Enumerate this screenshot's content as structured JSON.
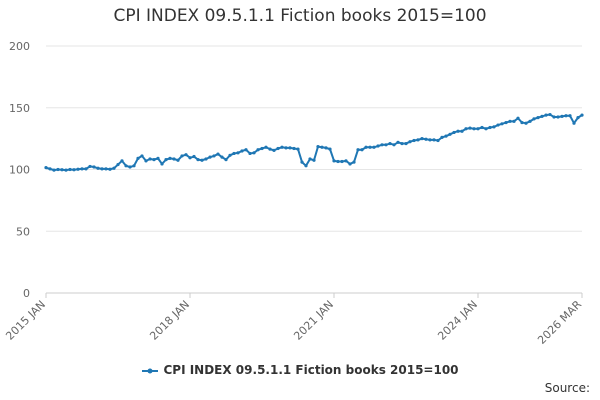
{
  "chart_data": {
    "type": "line",
    "title": "CPI INDEX 09.5.1.1 Fiction books 2015=100",
    "xlabel": "",
    "ylabel": "",
    "ylim": [
      0,
      200
    ],
    "yticks": [
      0,
      50,
      100,
      150,
      200
    ],
    "x_tick_labels": [
      "2015 JAN",
      "2018 JAN",
      "2021 JAN",
      "2024 JAN",
      "2026 MAR"
    ],
    "grid": true,
    "legend_position": "bottom",
    "series": [
      {
        "name": "CPI INDEX 09.5.1.1 Fiction books 2015=100",
        "color": "#1f77b4",
        "x": [
          "2015-01",
          "2015-02",
          "2015-03",
          "2015-04",
          "2015-05",
          "2015-06",
          "2015-07",
          "2015-08",
          "2015-09",
          "2015-10",
          "2015-11",
          "2015-12",
          "2016-01",
          "2016-02",
          "2016-03",
          "2016-04",
          "2016-05",
          "2016-06",
          "2016-07",
          "2016-08",
          "2016-09",
          "2016-10",
          "2016-11",
          "2016-12",
          "2017-01",
          "2017-02",
          "2017-03",
          "2017-04",
          "2017-05",
          "2017-06",
          "2017-07",
          "2017-08",
          "2017-09",
          "2017-10",
          "2017-11",
          "2017-12",
          "2018-01",
          "2018-02",
          "2018-03",
          "2018-04",
          "2018-05",
          "2018-06",
          "2018-07",
          "2018-08",
          "2018-09",
          "2018-10",
          "2018-11",
          "2018-12",
          "2019-01",
          "2019-02",
          "2019-03",
          "2019-04",
          "2019-05",
          "2019-06",
          "2019-07",
          "2019-08",
          "2019-09",
          "2019-10",
          "2019-11",
          "2019-12",
          "2020-01",
          "2020-02",
          "2020-03",
          "2020-04",
          "2020-05",
          "2020-06",
          "2020-07",
          "2020-08",
          "2020-09",
          "2020-10",
          "2020-11",
          "2020-12",
          "2021-01",
          "2021-02",
          "2021-03",
          "2021-04",
          "2021-05",
          "2021-06",
          "2021-07",
          "2021-08",
          "2021-09",
          "2021-10",
          "2021-11",
          "2021-12",
          "2022-01",
          "2022-02",
          "2022-03",
          "2022-04",
          "2022-05",
          "2022-06",
          "2022-07",
          "2022-08",
          "2022-09",
          "2022-10",
          "2022-11",
          "2022-12",
          "2023-01",
          "2023-02",
          "2023-03",
          "2023-04",
          "2023-05",
          "2023-06",
          "2023-07",
          "2023-08",
          "2023-09",
          "2023-10",
          "2023-11",
          "2023-12",
          "2024-01",
          "2024-02",
          "2024-03",
          "2024-04",
          "2024-05",
          "2024-06",
          "2024-07",
          "2024-08",
          "2024-09",
          "2024-10",
          "2024-11",
          "2024-12",
          "2025-01",
          "2025-02",
          "2025-03",
          "2025-04",
          "2025-05",
          "2025-06",
          "2025-07",
          "2025-08",
          "2025-09",
          "2025-10",
          "2025-11",
          "2025-12",
          "2026-01",
          "2026-02",
          "2026-03"
        ],
        "values": [
          101.5,
          100.5,
          99.5,
          100.0,
          99.8,
          99.5,
          100.0,
          99.8,
          100.2,
          100.5,
          100.5,
          102.5,
          102.0,
          101.0,
          100.5,
          100.5,
          100.2,
          101.0,
          104.0,
          107.0,
          103.0,
          102.0,
          103.0,
          109.0,
          111.0,
          107.0,
          108.5,
          108.0,
          109.0,
          104.5,
          108.0,
          109.0,
          108.5,
          107.5,
          111.0,
          112.0,
          109.5,
          110.5,
          108.0,
          107.5,
          108.5,
          110.0,
          111.0,
          112.5,
          110.0,
          108.0,
          111.5,
          113.0,
          113.5,
          115.0,
          116.0,
          113.0,
          113.5,
          116.0,
          117.0,
          118.0,
          116.5,
          115.5,
          117.0,
          118.0,
          117.5,
          117.5,
          117.0,
          116.5,
          106.0,
          103.0,
          108.5,
          107.5,
          118.5,
          118.0,
          117.5,
          116.5,
          107.0,
          106.5,
          106.5,
          107.0,
          104.5,
          106.0,
          116.0,
          116.0,
          118.0,
          118.0,
          118.0,
          119.0,
          120.0,
          120.0,
          121.0,
          120.0,
          122.0,
          121.0,
          121.0,
          122.5,
          123.5,
          124.0,
          125.0,
          124.5,
          124.0,
          124.0,
          123.5,
          126.0,
          127.0,
          128.5,
          130.0,
          131.0,
          131.0,
          133.0,
          133.5,
          133.0,
          133.0,
          134.0,
          133.0,
          134.0,
          134.5,
          136.0,
          137.0,
          138.0,
          139.0,
          139.0,
          141.5,
          138.0,
          137.5,
          139.0,
          141.0,
          142.0,
          143.0,
          144.0,
          144.5,
          142.5,
          142.5,
          143.0,
          143.5,
          143.5,
          137.5,
          142.0,
          144.0
        ]
      }
    ]
  },
  "source_label": "Source:"
}
